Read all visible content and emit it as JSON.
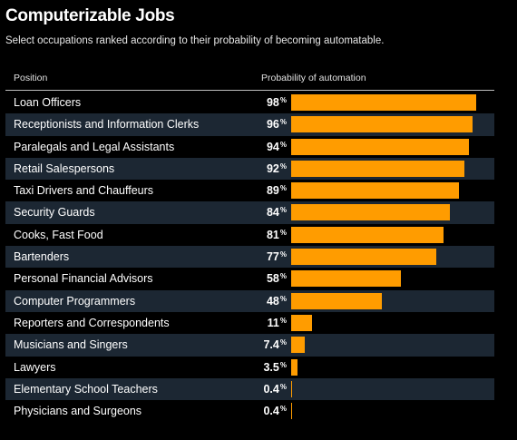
{
  "header": {
    "title": "Computerizable Jobs",
    "subtitle": "Select occupations ranked according to their probability of becoming automatable.",
    "col_position": "Position",
    "col_probability": "Probability of automation"
  },
  "colors": {
    "background": "#000000",
    "bar": "#ff9c00",
    "shaded_row": "#1c2733"
  },
  "chart_data": {
    "type": "bar",
    "orientation": "horizontal",
    "title": "Computerizable Jobs",
    "subtitle": "Select occupations ranked according to their probability of becoming automatable.",
    "xlabel": "Probability of automation",
    "ylabel": "Position",
    "xlim": [
      0,
      100
    ],
    "unit": "%",
    "categories": [
      "Loan Officers",
      "Receptionists and Information Clerks",
      "Paralegals and Legal Assistants",
      "Retail Salespersons",
      "Taxi Drivers and Chauffeurs",
      "Security Guards",
      "Cooks, Fast Food",
      "Bartenders",
      "Personal Financial Advisors",
      "Computer Programmers",
      "Reporters and Correspondents",
      "Musicians and Singers",
      "Lawyers",
      "Elementary School Teachers",
      "Physicians and Surgeons"
    ],
    "values": [
      98,
      96,
      94,
      92,
      89,
      84,
      81,
      77,
      58,
      48,
      11,
      7.4,
      3.5,
      0.4,
      0.4
    ],
    "value_labels": [
      "98",
      "96",
      "94",
      "92",
      "89",
      "84",
      "81",
      "77",
      "58",
      "48",
      "11",
      "7.4",
      "3.5",
      "0.4",
      "0.4"
    ]
  }
}
